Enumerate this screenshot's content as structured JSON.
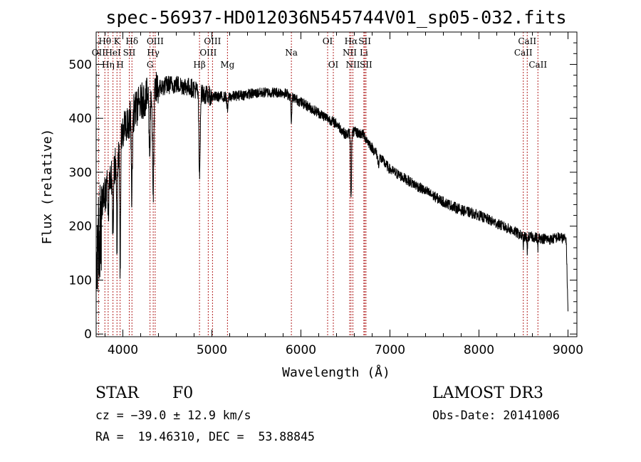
{
  "chart_data": {
    "type": "line",
    "title": "spec-56937-HD012036N545744V01_sp05-032.fits",
    "xlabel": "Wavelength (Å)",
    "ylabel": "Flux (relative)",
    "xlim": [
      3700,
      9100
    ],
    "ylim": [
      -5,
      560
    ],
    "xticks": [
      4000,
      5000,
      6000,
      7000,
      8000,
      9000
    ],
    "yticks": [
      0,
      100,
      200,
      300,
      400,
      500
    ],
    "x_range": [
      3700,
      9000
    ],
    "continuum": {
      "x": [
        3700,
        3750,
        3800,
        3850,
        3900,
        3950,
        4000,
        4100,
        4200,
        4300,
        4400,
        4500,
        4600,
        4700,
        4800,
        4900,
        5000,
        5200,
        5400,
        5600,
        5800,
        5900,
        6000,
        6200,
        6400,
        6500,
        6600,
        6700,
        6800,
        7000,
        7200,
        7400,
        7600,
        7800,
        8000,
        8200,
        8400,
        8500,
        8600,
        8700,
        8800,
        8900,
        8980,
        9000
      ],
      "y": [
        200,
        235,
        260,
        285,
        310,
        340,
        380,
        405,
        430,
        445,
        455,
        462,
        463,
        460,
        455,
        445,
        440,
        440,
        445,
        448,
        448,
        440,
        430,
        410,
        390,
        370,
        375,
        370,
        345,
        305,
        285,
        265,
        245,
        230,
        220,
        205,
        190,
        180,
        180,
        178,
        175,
        180,
        175,
        40
      ]
    },
    "absorption_features": [
      {
        "x": 3835,
        "depth": 60,
        "width": 5
      },
      {
        "x": 3889,
        "depth": 120,
        "width": 6
      },
      {
        "x": 3934,
        "depth": 200,
        "width": 4
      },
      {
        "x": 3970,
        "depth": 240,
        "width": 5
      },
      {
        "x": 4101,
        "depth": 150,
        "width": 6
      },
      {
        "x": 4300,
        "depth": 110,
        "width": 6
      },
      {
        "x": 4340,
        "depth": 200,
        "width": 7
      },
      {
        "x": 4861,
        "depth": 160,
        "width": 7
      },
      {
        "x": 5175,
        "depth": 25,
        "width": 6
      },
      {
        "x": 5893,
        "depth": 55,
        "width": 4
      },
      {
        "x": 6563,
        "depth": 120,
        "width": 5
      },
      {
        "x": 6870,
        "depth": 15,
        "width": 8
      },
      {
        "x": 8498,
        "depth": 15,
        "width": 4
      },
      {
        "x": 8542,
        "depth": 25,
        "width": 4
      },
      {
        "x": 8662,
        "depth": 18,
        "width": 4
      }
    ],
    "noise_amplitude": 10,
    "noise_seed": 12036,
    "spectral_lines": [
      {
        "label": "Hθ",
        "x": 3798,
        "row": 1
      },
      {
        "label": "OII",
        "x": 3727,
        "row": 2
      },
      {
        "label": "Hη",
        "x": 3835,
        "row": 3
      },
      {
        "label": "HeI",
        "x": 3889,
        "row": 2
      },
      {
        "label": "K",
        "x": 3934,
        "row": 1
      },
      {
        "label": "H",
        "x": 3969,
        "row": 3
      },
      {
        "label": "SII",
        "x": 4072,
        "row": 2
      },
      {
        "label": "Hδ",
        "x": 4102,
        "row": 1
      },
      {
        "label": "G",
        "x": 4305,
        "row": 3
      },
      {
        "label": "Hγ",
        "x": 4341,
        "row": 2
      },
      {
        "label": "OIII",
        "x": 4363,
        "row": 1
      },
      {
        "label": "Hβ",
        "x": 4861,
        "row": 3
      },
      {
        "label": "OIII",
        "x": 4959,
        "row": 2
      },
      {
        "label": "OIII",
        "x": 5007,
        "row": 1
      },
      {
        "label": "Mg",
        "x": 5175,
        "row": 3
      },
      {
        "label": "Na",
        "x": 5893,
        "row": 2
      },
      {
        "label": "OI",
        "x": 6300,
        "row": 1
      },
      {
        "label": "OI",
        "x": 6364,
        "row": 3
      },
      {
        "label": "NII",
        "x": 6548,
        "row": 2
      },
      {
        "label": "Hα",
        "x": 6563,
        "row": 1
      },
      {
        "label": "NII",
        "x": 6584,
        "row": 3
      },
      {
        "label": "SII",
        "x": 6717,
        "row": 1
      },
      {
        "label": "SII",
        "x": 6731,
        "row": 3
      },
      {
        "label": "Li",
        "x": 6707,
        "row": 2
      },
      {
        "label": "CaII",
        "x": 8498,
        "row": 2
      },
      {
        "label": "CaII",
        "x": 8542,
        "row": 1
      },
      {
        "label": "CaII",
        "x": 8662,
        "row": 3
      }
    ],
    "colors": {
      "spectrum": "#000000",
      "lines": "#b22222",
      "axes": "#000000"
    }
  },
  "info": {
    "object_class": "STAR",
    "subclass": "F0",
    "survey": "LAMOST DR3",
    "cz": "cz = −39.0 ± 12.9 km/s",
    "obs_date": "Obs-Date: 20141006",
    "coords": "RA =  19.46310, DEC =  53.88845"
  }
}
